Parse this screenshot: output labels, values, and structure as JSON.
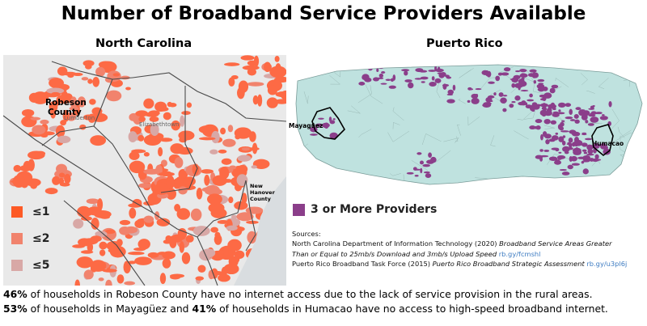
{
  "title": "Number of Broadband Service Providers Available",
  "north_carolina": {
    "title": "North Carolina",
    "labels": {
      "robeson": [
        "Robeson",
        "County"
      ],
      "new_hanover": [
        "New",
        "Hanover",
        "County"
      ]
    },
    "legend": [
      {
        "label": "≤1",
        "color": "#fd5a25"
      },
      {
        "label": "≤2",
        "color": "#f1836d"
      },
      {
        "label": "≤5",
        "color": "#d8a8a6"
      }
    ]
  },
  "puerto_rico": {
    "title": "Puerto Rico",
    "labels": {
      "mayaguez": "Mayagüez",
      "humacao": "Humacao"
    },
    "legend": {
      "label": "3 or More Providers",
      "color": "#8b3e8a"
    }
  },
  "sources": {
    "heading": "Sources:",
    "lines": [
      {
        "text": "North Carolina Department of Information Technology (2020) ",
        "italic": "Broadband Service Areas Greater",
        "link": ""
      },
      {
        "text": "",
        "italic": "Than or Equal to 25mb/s Download and 3mb/s Upload Speed",
        "link": "rb.gy/fcmshl"
      },
      {
        "text": "Puerto Rico Broadband Task Force (2015) ",
        "italic": "Puerto Rico Broadband Strategic Assessment",
        "link": "rb.gy/u3pl6j"
      }
    ]
  },
  "footer": [
    {
      "bold1": "46%",
      "text1": " of households in Robeson County have no internet access due to the lack of service provision in the rural areas.",
      "bold2": "",
      "text2": ""
    },
    {
      "bold1": "53%",
      "text1": " of households in Mayagüez and ",
      "bold2": "41%",
      "text2": " of households in Humacao have no access to high-speed  broadband internet."
    }
  ],
  "colors": {
    "nc_background": "#e9e9e9",
    "nc_fill": "#fd6a45",
    "pr_land": "#bfe2df",
    "pr_fill": "#8b3e8a"
  }
}
